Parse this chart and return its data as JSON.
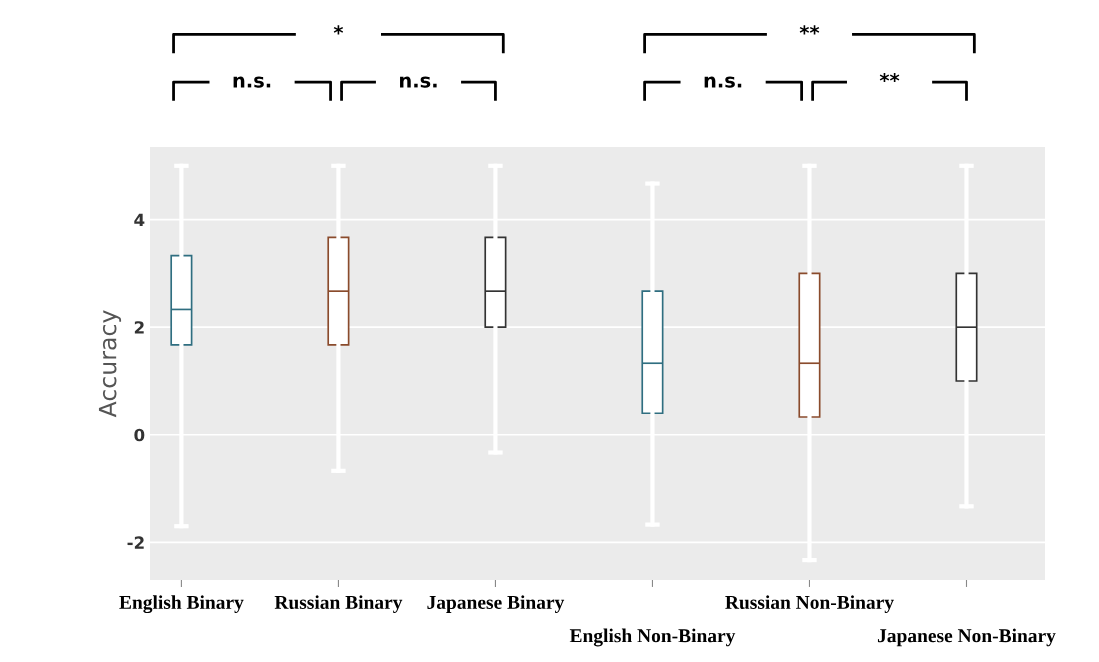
{
  "chart_data": {
    "type": "box",
    "ylabel": "Accuracy",
    "categories": [
      "English Binary",
      "Russian Binary",
      "Japanese Binary",
      "English Non-Binary",
      "Russian Non-Binary",
      "Japanese Non-Binary"
    ],
    "boxes": [
      {
        "low": -1.7,
        "q1": 1.67,
        "median": 2.33,
        "q3": 3.33,
        "high": 5
      },
      {
        "low": -0.67,
        "q1": 1.67,
        "median": 2.67,
        "q3": 3.67,
        "high": 5
      },
      {
        "low": -0.33,
        "q1": 2.0,
        "median": 2.67,
        "q3": 3.67,
        "high": 5
      },
      {
        "low": -1.67,
        "q1": 0.4,
        "median": 1.33,
        "q3": 2.67,
        "high": 4.67
      },
      {
        "low": -2.33,
        "q1": 0.33,
        "median": 1.33,
        "q3": 3.0,
        "high": 5
      },
      {
        "low": -1.33,
        "q1": 1.0,
        "median": 2.0,
        "q3": 3.0,
        "high": 5
      }
    ],
    "colors": [
      "#2f6e80",
      "#8a4b2c",
      "#333333",
      "#2f6e80",
      "#8a4b2c",
      "#333333"
    ],
    "ylim": [
      -2.7,
      5.35
    ],
    "yticks": [
      -2,
      0,
      2,
      4
    ],
    "grid": "y",
    "legend": false,
    "annotations": [
      "*",
      "n.s.",
      "n.s.",
      "**",
      "n.s.",
      "**"
    ]
  }
}
